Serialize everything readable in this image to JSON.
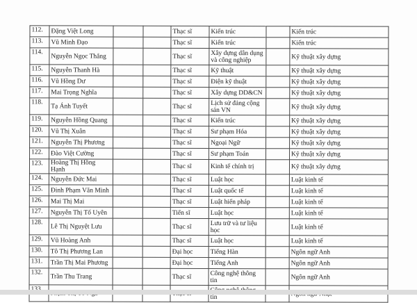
{
  "rows": [
    {
      "no": "112.",
      "name": "Đặng Việt Long",
      "degree": "Thạc sĩ",
      "major": "Kiến trúc",
      "field": "Kiến trúc",
      "tall": false
    },
    {
      "no": "113.",
      "name": "Vũ Minh Đạo",
      "degree": "Thạc sĩ",
      "major": "Kiến trúc",
      "field": "Kiến trúc",
      "tall": false
    },
    {
      "no": "114.",
      "name": "Nguyễn Ngọc Thắng",
      "degree": "Thạc sĩ",
      "major": "Xây dựng dân dụng và công nghiệp",
      "field": "Kỹ thuật xây dựng",
      "tall": true
    },
    {
      "no": "115.",
      "name": "Nguyễn Thanh Hà",
      "degree": "Thạc sĩ",
      "major": "Kỹ thuật",
      "field": "Kỹ thuật xây dựng",
      "tall": false
    },
    {
      "no": "116.",
      "name": "Vũ Hồng Dư",
      "degree": "Thạc sĩ",
      "major": "Điện kỹ thuật",
      "field": "Kỹ thuật xây dựng",
      "tall": false
    },
    {
      "no": "117.",
      "name": "Mai Trọng Nghĩa",
      "degree": "Thạc sĩ",
      "major": "Xây dựng DD&CN",
      "field": "Kỹ thuật xây dựng",
      "tall": false
    },
    {
      "no": "118.",
      "name": "Tạ Ánh Tuyết",
      "degree": "Thạc sĩ",
      "major": "Lịch sử đảng cộng sản VN",
      "field": "Kỹ thuật xây dựng",
      "tall": true
    },
    {
      "no": "119.",
      "name": "Nguyễn Hồng Quang",
      "degree": "Thạc sĩ",
      "major": "Kiến trúc",
      "field": "Kỹ thuật xây dựng",
      "tall": false
    },
    {
      "no": "120.",
      "name": "Vũ Thị Xuân",
      "degree": "Thạc sĩ",
      "major": "Sư phạm Hóa",
      "field": "Kỹ thuật xây dựng",
      "tall": false
    },
    {
      "no": "121.",
      "name": "Nguyễn Thị Phương",
      "degree": "Thạc sĩ",
      "major": "Ngoại Ngữ",
      "field": "Kỹ thuật xây dựng",
      "tall": false
    },
    {
      "no": "122.",
      "name": "Đào Việt Cường",
      "degree": "Thạc sĩ",
      "major": "Sư phạm Toán",
      "field": "Kỹ thuật xây dựng",
      "tall": false
    },
    {
      "no": "123.",
      "name": "Hoàng Thị Hồng Hạnh",
      "degree": "Thạc sĩ",
      "major": "Kinh tế chính trị",
      "field": "Kỹ thuật xây dựng",
      "tall": false
    },
    {
      "no": "124.",
      "name": "Nguyễn Đức Mai",
      "degree": "Thạc sĩ",
      "major": "Luật học",
      "field": "Luật kinh tế",
      "tall": false
    },
    {
      "no": "125.",
      "name": "Đinh Phạm Văn Minh",
      "degree": "Thạc sĩ",
      "major": "Luật quốc tế",
      "field": "Luật kinh tế",
      "tall": false
    },
    {
      "no": "126.",
      "name": "Mai Thị Mai",
      "degree": "Thạc sĩ",
      "major": "Luật hiến pháp",
      "field": "Luật kinh tế",
      "tall": false
    },
    {
      "no": "127.",
      "name": "Nguyễn Thị Tố Uyên",
      "degree": "Tiến sĩ",
      "major": "Luật học",
      "field": "Luật kinh tế",
      "tall": false
    },
    {
      "no": "128.",
      "name": "Lê Thị Nguyệt Lưu",
      "degree": "Thạc sĩ",
      "major": "Lưu trữ và tư liệu học",
      "field": "Luật kinh tế",
      "tall": true
    },
    {
      "no": "129.",
      "name": "Vũ Hoàng Anh",
      "degree": "Thạc sĩ",
      "major": "Luật học",
      "field": "Luật kinh tế",
      "tall": false
    },
    {
      "no": "130.",
      "name": "Tô Thị Phương Lan",
      "degree": "Đại học",
      "major": "Tiếng Hàn",
      "field": "Ngôn ngữ Anh",
      "tall": false
    },
    {
      "no": "131.",
      "name": "Trần Thị Mai Phương",
      "degree": "Đại học",
      "major": "Tiếng Anh",
      "field": "Ngôn ngữ Anh",
      "tall": false
    },
    {
      "no": "132.",
      "name": "Trần Thu Trang",
      "degree": "Thạc sĩ",
      "major": "Công nghệ thông tin",
      "field": "Ngôn ngữ Anh",
      "tall": true
    },
    {
      "no": "133.",
      "name": "Phạm Thị Tố Nga",
      "degree": "Thạc sĩ",
      "major": "Công nghệ thông tin",
      "field": "Ngôn ngữ Nhật",
      "tall": true
    }
  ]
}
